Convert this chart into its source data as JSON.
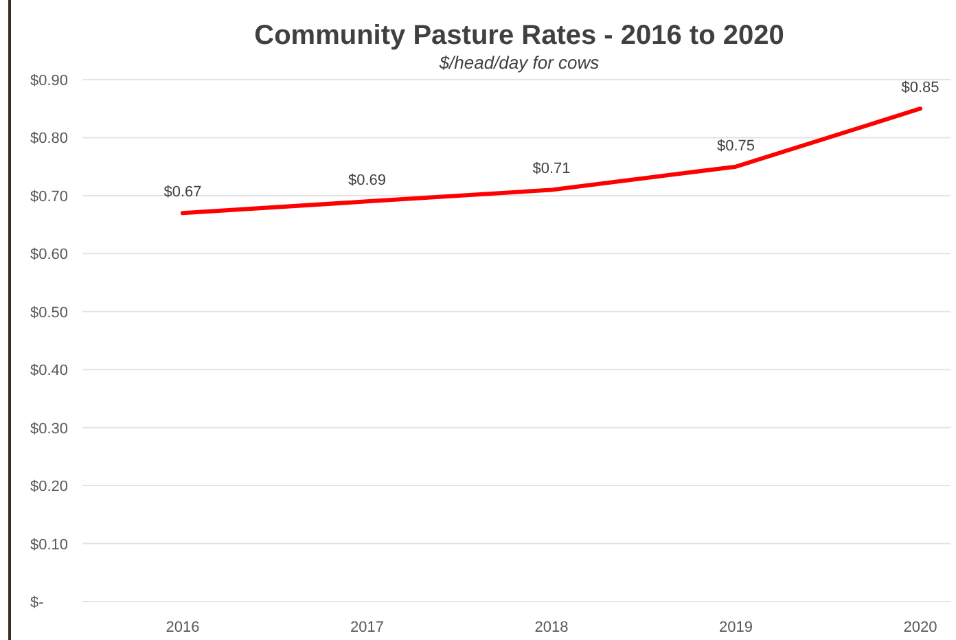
{
  "chart_data": {
    "type": "line",
    "title": "Community Pasture Rates - 2016 to 2020",
    "subtitle": "$/head/day for cows",
    "categories": [
      "2016",
      "2017",
      "2018",
      "2019",
      "2020"
    ],
    "series": [
      {
        "color": "#ff0000",
        "values": [
          0.67,
          0.69,
          0.71,
          0.75,
          0.85
        ],
        "value_labels": [
          "$0.67",
          "$0.69",
          "$0.71",
          "$0.75",
          "$0.85"
        ]
      }
    ],
    "ylim": [
      0,
      0.9
    ],
    "yticks": [
      {
        "value": 0,
        "label": "$-"
      },
      {
        "value": 0.1,
        "label": "$0.10"
      },
      {
        "value": 0.2,
        "label": "$0.20"
      },
      {
        "value": 0.3,
        "label": "$0.30"
      },
      {
        "value": 0.4,
        "label": "$0.40"
      },
      {
        "value": 0.5,
        "label": "$0.50"
      },
      {
        "value": 0.6,
        "label": "$0.60"
      },
      {
        "value": 0.7,
        "label": "$0.70"
      },
      {
        "value": 0.8,
        "label": "$0.80"
      },
      {
        "value": 0.9,
        "label": "$0.90"
      }
    ],
    "grid": "y",
    "marker": "none",
    "line_style": "solid"
  }
}
